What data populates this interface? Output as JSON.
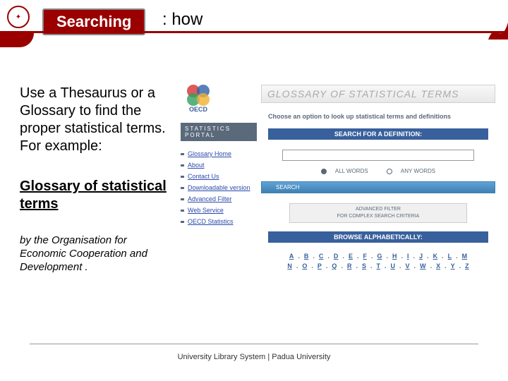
{
  "title_chip": "Searching",
  "title_suffix": ": how",
  "intro_text": "Use a Thesaurus or a Glossary to find the proper statistical terms. For example:",
  "glossary_link": "Glossary of statistical terms",
  "byline": "by the Organisation for Economic Cooperation and Development .",
  "footer": "University Library System | Padua University",
  "oecd_label": "OECD",
  "oecd_colors": {
    "c1": "#d63030",
    "c2": "#3060a8",
    "c3": "#30a060",
    "c4": "#f0b030"
  },
  "portal_banner": "STATISTICS PORTAL",
  "portal_links": [
    "Glossary Home",
    "About",
    "Contact Us",
    "Downloadable version",
    "Advanced Filter",
    "Web Service",
    "OECD Statistics"
  ],
  "glossary_header": "GLOSSARY OF STATISTICAL TERMS",
  "choose_text": "Choose an option to look up statistical terms and definitions",
  "search_bar_label": "SEARCH FOR A DEFINITION:",
  "radio_all": "ALL WORDS",
  "radio_any": "ANY WORDS",
  "search_btn": "SEARCH",
  "adv_filter_title": "ADVANCED FILTER",
  "adv_filter_sub": "FOR COMPLEX SEARCH CRITERIA",
  "browse_bar_label": "BROWSE ALPHABETICALLY:",
  "alpha_row1": [
    "A",
    "B",
    "C",
    "D",
    "E",
    "F",
    "G",
    "H",
    "I",
    "J",
    "K",
    "L",
    "M"
  ],
  "alpha_row2": [
    "N",
    "O",
    "P",
    "Q",
    "R",
    "S",
    "T",
    "U",
    "V",
    "W",
    "X",
    "Y",
    "Z"
  ],
  "colors": {
    "brand_red": "#9a0000",
    "blue_bar": "#38609c",
    "portal_gray": "#5a6a7a",
    "link_blue": "#2a4aaa"
  }
}
